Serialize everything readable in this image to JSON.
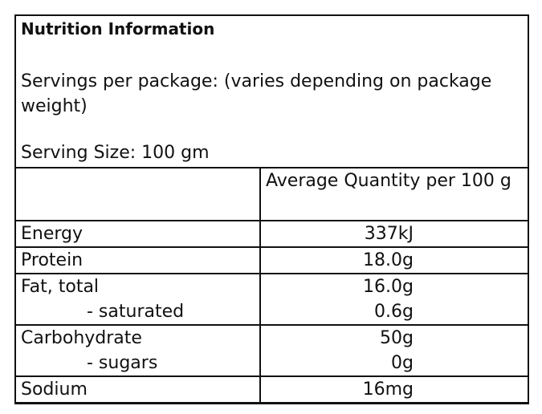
{
  "title": "Nutrition Information",
  "servings_per_package": "Servings per package: (varies depending on package weight)",
  "serving_size": "Serving Size: 100 gm",
  "column_header": "Average Quantity per 100 g",
  "rows": [
    {
      "label": "Energy",
      "value": "337kJ"
    },
    {
      "label": "Protein",
      "value": "18.0g"
    },
    {
      "label": "Fat, total",
      "value": "16.0g",
      "sub_label": "- saturated",
      "sub_value": "0.6g"
    },
    {
      "label": "Carbohydrate",
      "value": "50g",
      "sub_label": "- sugars",
      "sub_value": "0g"
    },
    {
      "label": "Sodium",
      "value": "16mg"
    }
  ]
}
